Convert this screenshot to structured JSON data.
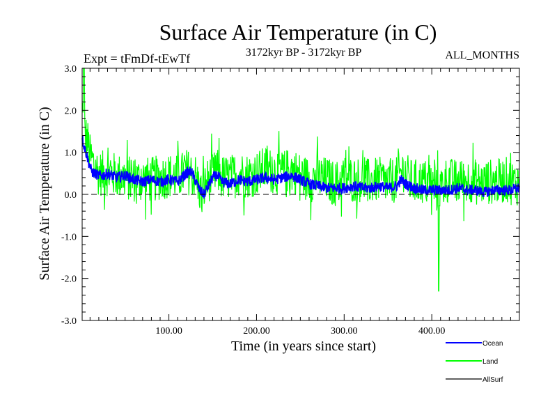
{
  "chart_data": {
    "type": "line",
    "title": "Surface Air Temperature (in C)",
    "subtitle_left": "Expt = tFmDf-tEwTf",
    "subtitle_center": "3172kyr BP - 3172kyr BP",
    "subtitle_right": "ALL_MONTHS",
    "xlabel": "Time (in years since start)",
    "ylabel": "Surface Air Temperature (in C)",
    "xlim": [
      1,
      500
    ],
    "ylim": [
      -3.0,
      3.0
    ],
    "x_ticks": [
      100,
      200,
      300,
      400
    ],
    "x_tick_labels": [
      "100.00",
      "200.00",
      "300.00",
      "400.00"
    ],
    "y_ticks": [
      -3,
      -2,
      -1,
      0,
      1,
      2,
      3
    ],
    "y_tick_labels": [
      "-3.0",
      "-2.0",
      "-1.0",
      "0.0",
      "1.0",
      "2.0",
      "3.0"
    ],
    "zero_line": "dashed",
    "legend_position": "bottom-right, outside plot",
    "series": [
      {
        "name": "Land",
        "color": "#00ff00",
        "x": [
          1,
          3,
          5,
          8,
          10,
          15,
          20,
          30,
          40,
          50,
          60,
          70,
          80,
          90,
          100,
          110,
          120,
          130,
          137,
          145,
          155,
          160,
          170,
          180,
          190,
          200,
          210,
          220,
          230,
          240,
          250,
          260,
          270,
          280,
          290,
          300,
          310,
          320,
          330,
          340,
          350,
          360,
          368,
          375,
          385,
          395,
          400,
          408,
          415,
          425,
          435,
          445,
          455,
          465,
          475,
          485,
          495,
          500
        ],
        "values": [
          2.0,
          1.5,
          1.4,
          1.2,
          0.9,
          0.7,
          0.5,
          0.5,
          0.45,
          0.4,
          0.35,
          0.35,
          0.35,
          0.4,
          0.45,
          0.4,
          0.55,
          0.45,
          0.0,
          0.35,
          0.55,
          0.4,
          0.4,
          0.5,
          0.45,
          0.5,
          0.6,
          0.55,
          0.5,
          0.6,
          0.45,
          0.35,
          0.4,
          0.35,
          0.25,
          0.4,
          0.35,
          0.35,
          0.3,
          0.35,
          0.3,
          0.35,
          0.6,
          0.3,
          0.3,
          0.3,
          0.2,
          0.05,
          0.35,
          0.3,
          0.3,
          0.35,
          0.25,
          0.3,
          0.3,
          0.35,
          0.25,
          0.3
        ],
        "spread": 0.55,
        "max": 3.0,
        "min": -2.3
      },
      {
        "name": "Ocean",
        "color": "#0000ff",
        "x": [
          1,
          2,
          4,
          6,
          8,
          10,
          12,
          15,
          20,
          25,
          30,
          40,
          50,
          60,
          70,
          80,
          90,
          100,
          110,
          120,
          125,
          130,
          135,
          140,
          145,
          150,
          155,
          160,
          170,
          180,
          190,
          200,
          210,
          220,
          230,
          240,
          250,
          260,
          270,
          280,
          290,
          300,
          310,
          320,
          330,
          340,
          350,
          360,
          365,
          370,
          380,
          390,
          400,
          410,
          420,
          430,
          440,
          450,
          460,
          470,
          480,
          490,
          500
        ],
        "values": [
          1.4,
          1.25,
          1.1,
          0.95,
          0.8,
          0.65,
          0.55,
          0.5,
          0.45,
          0.45,
          0.5,
          0.4,
          0.45,
          0.35,
          0.3,
          0.35,
          0.3,
          0.35,
          0.3,
          0.5,
          0.55,
          0.35,
          0.1,
          0.0,
          0.2,
          0.4,
          0.45,
          0.3,
          0.25,
          0.35,
          0.3,
          0.35,
          0.4,
          0.35,
          0.4,
          0.45,
          0.35,
          0.25,
          0.2,
          0.15,
          0.15,
          0.15,
          0.2,
          0.15,
          0.15,
          0.2,
          0.15,
          0.2,
          0.35,
          0.25,
          0.15,
          0.1,
          0.1,
          0.1,
          0.1,
          0.15,
          0.1,
          0.1,
          0.05,
          0.1,
          0.1,
          0.1,
          0.15
        ],
        "spread": 0.13
      },
      {
        "name": "AllSurf",
        "color": "#000000",
        "values": []
      }
    ]
  }
}
